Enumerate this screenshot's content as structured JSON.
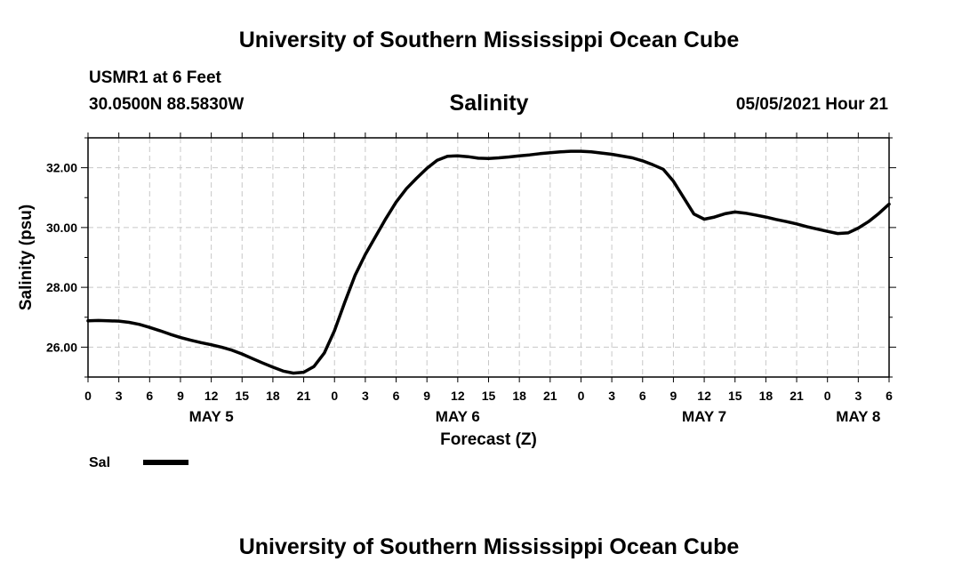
{
  "header": {
    "title": "University of Southern Mississippi Ocean Cube",
    "station": "USMR1 at 6 Feet",
    "coords": "30.0500N  88.5830W",
    "variable": "Salinity",
    "datetime": "05/05/2021 Hour 21"
  },
  "footer": {
    "title": "University of Southern Mississippi Ocean Cube"
  },
  "legend": {
    "label": "Sal"
  },
  "chart_data": {
    "type": "line",
    "title": "Salinity",
    "xlabel": "Forecast (Z)",
    "ylabel": "Salinity (psu)",
    "x_unit": "hours from 2021-05-05 00Z",
    "xlim": [
      0,
      78
    ],
    "ylim": [
      25,
      33
    ],
    "grid": true,
    "x_tick_labels": [
      "0",
      "3",
      "6",
      "9",
      "12",
      "15",
      "18",
      "21",
      "0",
      "3",
      "6",
      "9",
      "12",
      "15",
      "18",
      "21",
      "0",
      "3",
      "6",
      "9",
      "12",
      "15",
      "18",
      "21",
      "0",
      "3",
      "6"
    ],
    "day_labels": [
      {
        "hour": 12,
        "label": "MAY 5"
      },
      {
        "hour": 36,
        "label": "MAY 6"
      },
      {
        "hour": 60,
        "label": "MAY 7"
      },
      {
        "hour": 75,
        "label": "MAY 8"
      }
    ],
    "y_tick_labels": [
      "26.00",
      "28.00",
      "30.00",
      "32.00"
    ],
    "y_tick_values": [
      26,
      28,
      30,
      32
    ],
    "series": [
      {
        "name": "Sal",
        "color": "#000000",
        "x": [
          0,
          1,
          2,
          3,
          4,
          5,
          6,
          7,
          8,
          9,
          10,
          11,
          12,
          13,
          14,
          15,
          16,
          17,
          18,
          19,
          20,
          21,
          22,
          23,
          24,
          25,
          26,
          27,
          28,
          29,
          30,
          31,
          32,
          33,
          34,
          35,
          36,
          37,
          38,
          39,
          40,
          41,
          42,
          43,
          44,
          45,
          46,
          47,
          48,
          49,
          50,
          51,
          52,
          53,
          54,
          55,
          56,
          57,
          58,
          59,
          60,
          61,
          62,
          63,
          64,
          65,
          66,
          67,
          68,
          69,
          70,
          71,
          72,
          73,
          74,
          75,
          76,
          77,
          78
        ],
        "y": [
          26.88,
          26.89,
          26.88,
          26.87,
          26.83,
          26.76,
          26.66,
          26.55,
          26.43,
          26.32,
          26.23,
          26.15,
          26.08,
          26.0,
          25.9,
          25.77,
          25.62,
          25.47,
          25.33,
          25.2,
          25.13,
          25.16,
          25.35,
          25.8,
          26.55,
          27.5,
          28.4,
          29.1,
          29.7,
          30.3,
          30.85,
          31.3,
          31.65,
          31.98,
          32.25,
          32.38,
          32.4,
          32.37,
          32.32,
          32.31,
          32.33,
          32.36,
          32.4,
          32.43,
          32.47,
          32.5,
          32.53,
          32.55,
          32.55,
          32.53,
          32.49,
          32.45,
          32.39,
          32.33,
          32.23,
          32.1,
          31.95,
          31.55,
          31.0,
          30.45,
          30.28,
          30.35,
          30.46,
          30.52,
          30.48,
          30.42,
          30.35,
          30.27,
          30.2,
          30.12,
          30.03,
          29.95,
          29.87,
          29.8,
          29.82,
          29.98,
          30.2,
          30.47,
          30.78
        ]
      }
    ]
  }
}
